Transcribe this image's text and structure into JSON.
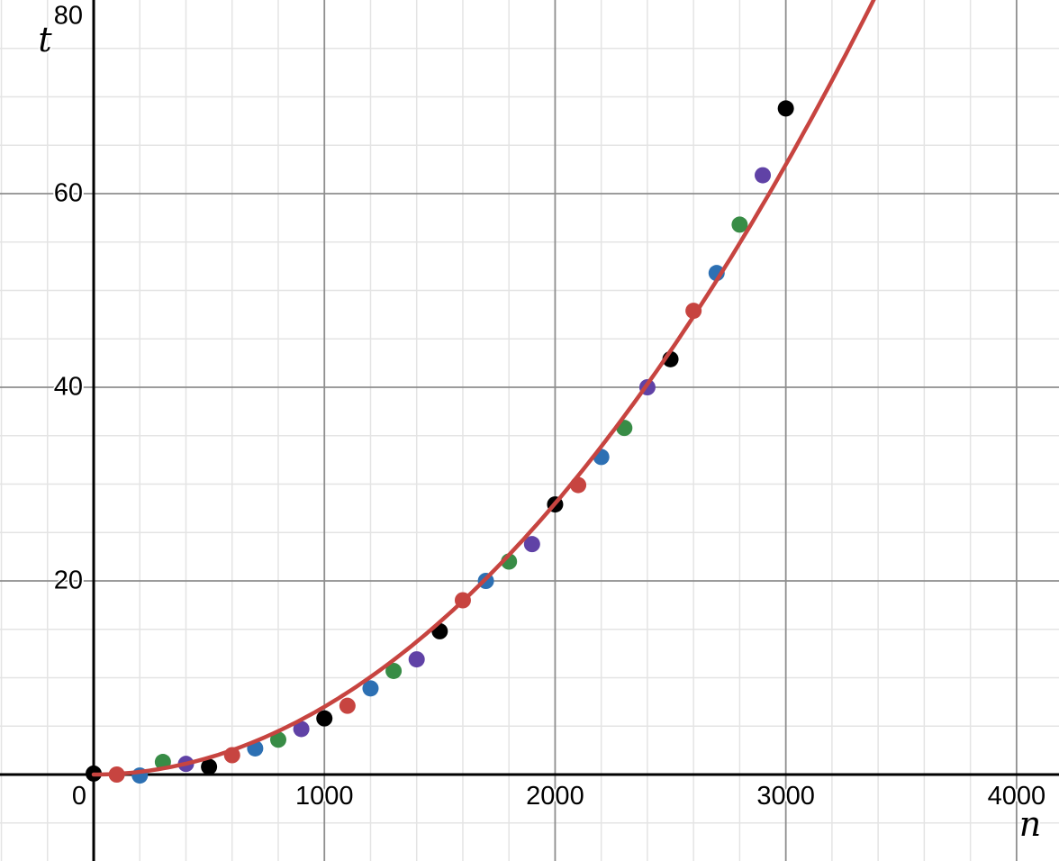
{
  "chart_data": {
    "type": "scatter",
    "title": "",
    "xlabel": "n",
    "ylabel": "t",
    "xlim": [
      -406,
      4184
    ],
    "ylim": [
      -8.93,
      80
    ],
    "x_ticks": [
      0,
      1000,
      2000,
      3000,
      4000
    ],
    "x_tick_labels": [
      "0",
      "1000",
      "2000",
      "3000",
      "4000"
    ],
    "y_ticks": [
      20,
      40,
      60,
      80
    ],
    "y_tick_labels": [
      "20",
      "40",
      "60",
      "80"
    ],
    "grid": {
      "minor_x_step": 200,
      "minor_y_step": 5,
      "major_x_step": 1000,
      "major_y_step": 20,
      "minor_color": "#e4e4e4",
      "major_color": "#8e8e8e",
      "axis_color": "#000000"
    },
    "legend": "none",
    "point_radius": 9,
    "curve_width": 4.5,
    "series": [
      {
        "name": "black-points",
        "color": "#000000",
        "points": [
          [
            0,
            0.1
          ],
          [
            500,
            0.8
          ],
          [
            1000,
            5.8
          ],
          [
            1500,
            14.8
          ],
          [
            2000,
            27.9
          ],
          [
            2500,
            42.9
          ],
          [
            3000,
            68.8
          ]
        ]
      },
      {
        "name": "red-points",
        "color": "#c74440",
        "points": [
          [
            100,
            0.0
          ],
          [
            600,
            2.0
          ],
          [
            1100,
            7.1
          ],
          [
            1600,
            18.0
          ],
          [
            2100,
            29.9
          ],
          [
            2600,
            47.9
          ]
        ]
      },
      {
        "name": "blue-points",
        "color": "#2d70b3",
        "points": [
          [
            200,
            -0.1
          ],
          [
            700,
            2.7
          ],
          [
            1200,
            8.9
          ],
          [
            1700,
            20.0
          ],
          [
            2200,
            32.8
          ],
          [
            2700,
            51.8
          ]
        ]
      },
      {
        "name": "green-points",
        "color": "#388c46",
        "points": [
          [
            300,
            1.3
          ],
          [
            800,
            3.6
          ],
          [
            1300,
            10.7
          ],
          [
            1800,
            22.0
          ],
          [
            2300,
            35.8
          ],
          [
            2800,
            56.8
          ]
        ]
      },
      {
        "name": "purple-points",
        "color": "#6042a6",
        "points": [
          [
            400,
            1.1
          ],
          [
            900,
            4.7
          ],
          [
            1400,
            11.9
          ],
          [
            1900,
            23.8
          ],
          [
            2400,
            40.0
          ],
          [
            2900,
            61.9
          ]
        ]
      }
    ],
    "fit_curve": {
      "type": "power",
      "expression": "t = 7e-6 * n^2",
      "a": 7e-06,
      "b": 2,
      "color": "#c74440",
      "domain": [
        0,
        3500
      ]
    }
  }
}
